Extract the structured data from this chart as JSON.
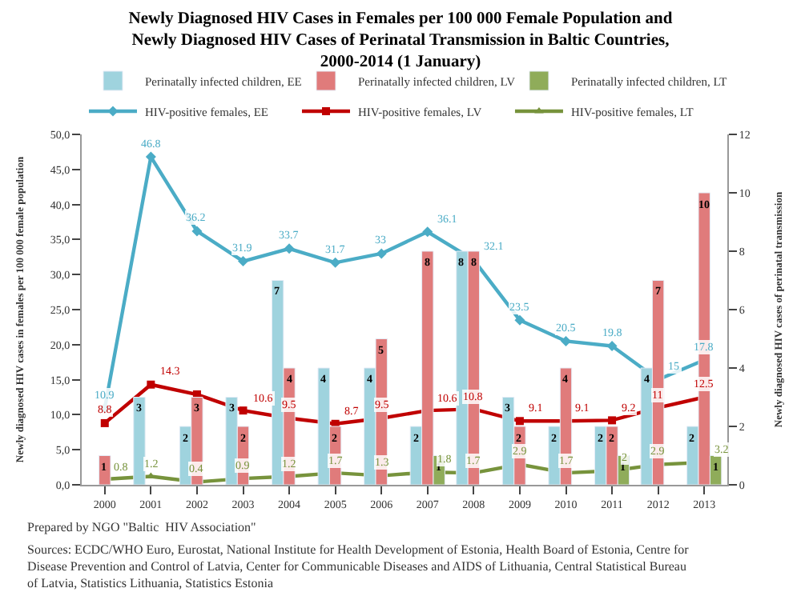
{
  "chart_data": {
    "type": "bar",
    "title": "Newly Diagnosed HIV Cases in Females per 100 000 Female Population and\nNewly Diagnosed HIV Cases of Perinatal Transmission in Baltic Countries,\n2000-2014 (1 January)",
    "ylabel": "Newly diagnosed HIV cases in females per 100 000 female population",
    "y2label": "Newly diagnosed HIV cases of perinatal transmission",
    "categories": [
      "2000",
      "2001",
      "2002",
      "2003",
      "2004",
      "2005",
      "2006",
      "2007",
      "2008",
      "2009",
      "2010",
      "2011",
      "2012",
      "2013"
    ],
    "series": [
      {
        "name": "Perinatally infected children, EE",
        "axis": "y2",
        "color": "#9fd3de",
        "values": [
          null,
          3,
          2,
          3,
          7,
          4,
          4,
          2,
          8,
          3,
          2,
          2,
          4,
          2
        ]
      },
      {
        "name": "Perinatally infected children, LV",
        "axis": "y2",
        "color": "#e07b7b",
        "values": [
          1,
          null,
          3,
          2,
          4,
          2,
          5,
          8,
          8,
          2,
          4,
          2,
          7,
          10
        ]
      },
      {
        "name": "Perinatally infected children, LT",
        "axis": "y2",
        "color": "#8fac5a",
        "values": [
          null,
          null,
          null,
          null,
          null,
          null,
          null,
          1,
          null,
          null,
          null,
          1,
          null,
          1
        ]
      },
      {
        "name": "HIV-positive females, EE",
        "type": "line",
        "color": "#4bacc6",
        "marker": "diamond",
        "values": [
          10.9,
          46.8,
          36.2,
          31.9,
          33.7,
          31.7,
          33,
          36.1,
          32.1,
          23.5,
          20.5,
          19.8,
          15,
          17.8
        ]
      },
      {
        "name": "HIV-positive females, LV",
        "type": "line",
        "color": "#c00000",
        "marker": "square",
        "values": [
          8.8,
          14.3,
          12.9,
          10.6,
          9.5,
          8.7,
          9.5,
          10.6,
          10.8,
          9.1,
          9.1,
          9.2,
          11,
          12.5
        ],
        "value_labels": [
          "8.8",
          "14.3",
          null,
          "10.6",
          "9.5",
          "8.7",
          "9.5",
          "10.6",
          "10.8",
          "9.1",
          "9.1",
          "9.2",
          "11",
          "12.5"
        ]
      },
      {
        "name": "HIV-positive females, LT",
        "type": "line",
        "color": "#77933c",
        "marker": "triangle",
        "values": [
          0.8,
          1.2,
          0.4,
          0.9,
          1.2,
          1.7,
          1.3,
          1.8,
          1.7,
          2.9,
          1.7,
          2,
          2.9,
          3.2
        ]
      }
    ],
    "ylim": [
      0,
      50
    ],
    "yticks": [
      {
        "value": 0,
        "label": "0,0"
      },
      {
        "value": 5,
        "label": "5,0"
      },
      {
        "value": 10,
        "label": "10,0"
      },
      {
        "value": 15,
        "label": "15,0"
      },
      {
        "value": 20,
        "label": "20,0"
      },
      {
        "value": 25,
        "label": "25,0"
      },
      {
        "value": 30,
        "label": "30,0"
      },
      {
        "value": 35,
        "label": "35,0"
      },
      {
        "value": 40,
        "label": "40,0"
      },
      {
        "value": 45,
        "label": "45,0"
      },
      {
        "value": 50,
        "label": "50,0"
      }
    ],
    "y2lim": [
      0,
      12
    ],
    "y2ticks": [
      0,
      2,
      4,
      6,
      8,
      10,
      12
    ],
    "data_labels": true,
    "legend": "top",
    "annotations": [
      "Prepared by NGO \"Baltic  HIV Association\"",
      "Sources: ECDC/WHO Euro, Eurostat, National Institute for Health Development of Estonia, Health Board of Estonia, Centre for\nDisease Prevention and Control of Latvia, Center for Communicable Diseases and AIDS of Lithuania, Central Statistical Bureau\nof Latvia, Statistics Lithuania, Statistics Estonia"
    ]
  }
}
